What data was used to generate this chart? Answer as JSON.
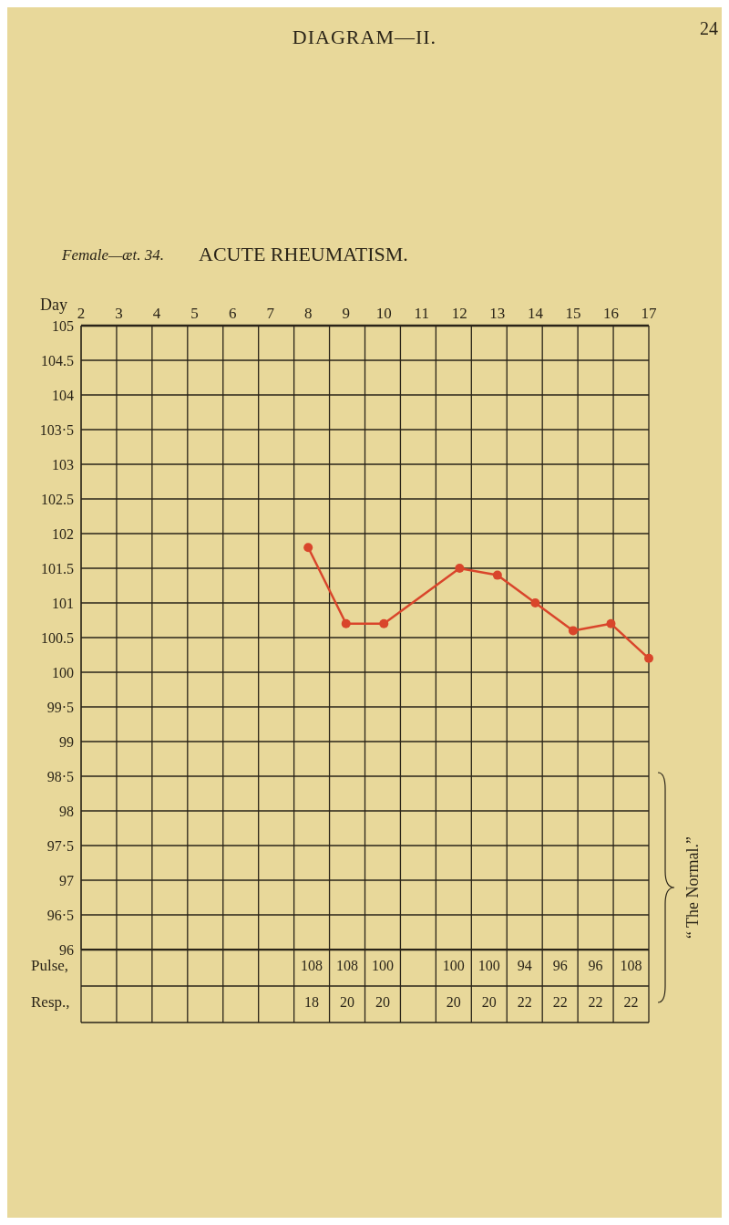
{
  "chart_data": {
    "type": "line",
    "title": "DIAGRAM—II.",
    "subtitle": "ACUTE RHEUMATISM.",
    "xlabel": "Day",
    "categories": [
      "2",
      "3",
      "4",
      "5",
      "6",
      "7",
      "8",
      "9",
      "10",
      "11",
      "12",
      "13",
      "14",
      "15",
      "16",
      "17"
    ],
    "values": [
      null,
      null,
      null,
      null,
      null,
      null,
      101.8,
      100.7,
      100.7,
      null,
      101.5,
      101.4,
      101,
      100.6,
      100.7,
      100.2
    ],
    "color": "#d9452b",
    "marker": "circle",
    "line_style": "solid",
    "grid": true,
    "legend": false,
    "ylim": [
      96,
      105
    ],
    "yticks": [
      96,
      {
        "value": 96.5,
        "label": "96·5"
      },
      97,
      {
        "value": 97.5,
        "label": "97·5"
      },
      98,
      {
        "value": 98.5,
        "label": "98·5"
      },
      99,
      {
        "value": 99.5,
        "label": "99·5"
      },
      100,
      100.5,
      101,
      101.5,
      102,
      102.5,
      103,
      {
        "value": 103.5,
        "label": "103·5"
      },
      104,
      104.5,
      105
    ],
    "annotations": [
      "Female—æt. 34.",
      "24",
      "“ The Normal.”",
      "Pulse,",
      "108",
      "108",
      "100",
      "100",
      "100",
      "94",
      "96",
      "96",
      "108",
      "Resp.,",
      "18",
      "20",
      "20",
      "20",
      "20",
      "22",
      "22",
      "22",
      "22"
    ]
  }
}
